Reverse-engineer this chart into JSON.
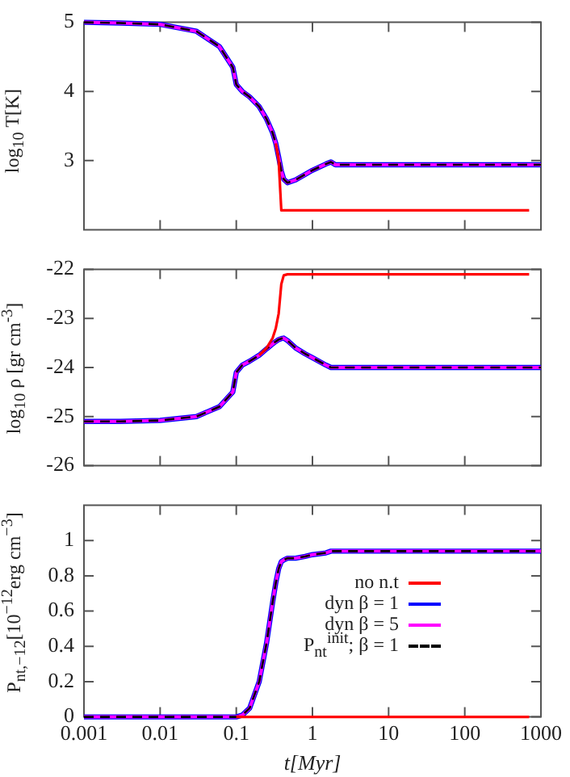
{
  "chart_data": [
    {
      "type": "line",
      "ylabel": "log$_{10}$ T[K]",
      "log": "x",
      "marker": "none",
      "grid": false,
      "tick_labels": "y",
      "x": [
        0.001,
        0.003,
        0.01,
        0.03,
        0.06,
        0.09,
        0.1,
        0.12,
        0.15,
        0.2,
        0.25,
        0.3,
        0.33,
        0.36,
        0.39,
        0.42,
        0.47,
        0.6,
        0.8,
        1,
        1.5,
        1.75,
        2,
        10,
        100,
        700,
        1000
      ],
      "xlim": [
        0.001,
        1000
      ],
      "xticks": [
        0.001,
        0.01,
        0.1,
        1,
        10,
        100,
        1000
      ],
      "ylim": [
        2,
        5
      ],
      "yticks": [
        3,
        4,
        5
      ],
      "series": [
        {
          "color": "#ff0000",
          "values": [
            null,
            null,
            null,
            null,
            null,
            null,
            null,
            null,
            null,
            null,
            null,
            null,
            3.25,
            3.0,
            2.28,
            2.28,
            2.28,
            2.28,
            2.28,
            2.28,
            2.28,
            2.28,
            2.28,
            2.28,
            2.28,
            2.28,
            null
          ]
        },
        {
          "color": "#0000ff",
          "values": [
            5,
            4.99,
            4.97,
            4.87,
            4.65,
            4.35,
            4.1,
            4.0,
            3.92,
            3.78,
            3.6,
            3.4,
            3.25,
            3.05,
            2.85,
            2.73,
            2.68,
            2.72,
            2.8,
            2.86,
            2.95,
            2.98,
            2.94,
            2.94,
            2.94,
            2.94,
            2.94
          ]
        },
        {
          "color": "#ff00ff",
          "values": [
            5,
            4.99,
            4.97,
            4.87,
            4.65,
            4.35,
            4.1,
            4.0,
            3.92,
            3.78,
            3.6,
            3.4,
            3.25,
            3.05,
            2.85,
            2.73,
            2.68,
            2.72,
            2.8,
            2.86,
            2.95,
            2.98,
            2.94,
            2.94,
            2.94,
            2.94,
            2.94
          ]
        },
        {
          "color": "#000000",
          "line_style": "dashed",
          "values": [
            5,
            4.99,
            4.97,
            4.87,
            4.65,
            4.35,
            4.1,
            4.0,
            3.92,
            3.78,
            3.6,
            3.4,
            3.25,
            3.05,
            2.85,
            2.73,
            2.68,
            2.72,
            2.8,
            2.86,
            2.95,
            2.98,
            2.94,
            2.94,
            2.94,
            2.94,
            2.94
          ]
        }
      ]
    },
    {
      "type": "line",
      "ylabel": "log$_{10}$ ρ [gr cm$^{-3}$]",
      "log": "x",
      "marker": "none",
      "grid": false,
      "tick_labels": "y",
      "x": [
        0.001,
        0.003,
        0.01,
        0.03,
        0.06,
        0.09,
        0.1,
        0.12,
        0.15,
        0.2,
        0.25,
        0.3,
        0.33,
        0.36,
        0.39,
        0.42,
        0.47,
        0.6,
        0.8,
        1,
        1.5,
        1.75,
        2,
        10,
        100,
        700,
        1000
      ],
      "xlim": [
        0.001,
        1000
      ],
      "xticks": [
        0.001,
        0.01,
        0.1,
        1,
        10,
        100,
        1000
      ],
      "ylim": [
        -26,
        -22
      ],
      "yticks": [
        -26,
        -25,
        -24,
        -23,
        -22
      ],
      "series": [
        {
          "color": "#ff0000",
          "values": [
            null,
            null,
            null,
            null,
            null,
            null,
            null,
            null,
            null,
            -23.75,
            -23.6,
            -23.4,
            -23.2,
            -22.9,
            -22.3,
            -22.12,
            -22.1,
            -22.1,
            -22.1,
            -22.1,
            -22.1,
            -22.1,
            -22.1,
            -22.1,
            -22.1,
            -22.1,
            null
          ]
        },
        {
          "color": "#0000ff",
          "values": [
            -25.1,
            -25.1,
            -25.08,
            -25.0,
            -24.8,
            -24.5,
            -24.1,
            -23.95,
            -23.87,
            -23.75,
            -23.62,
            -23.52,
            -23.47,
            -23.43,
            -23.41,
            -23.4,
            -23.45,
            -23.6,
            -23.72,
            -23.8,
            -23.95,
            -24.0,
            -24.0,
            -24.0,
            -24.0,
            -24.0,
            -24.0
          ]
        },
        {
          "color": "#ff00ff",
          "values": [
            -25.1,
            -25.1,
            -25.08,
            -25.0,
            -24.8,
            -24.5,
            -24.1,
            -23.95,
            -23.87,
            -23.75,
            -23.62,
            -23.52,
            -23.47,
            -23.43,
            -23.41,
            -23.4,
            -23.45,
            -23.6,
            -23.72,
            -23.8,
            -23.95,
            -24.0,
            -24.0,
            -24.0,
            -24.0,
            -24.0,
            -24.0
          ]
        },
        {
          "color": "#000000",
          "line_style": "dashed",
          "values": [
            -25.1,
            -25.1,
            -25.08,
            -25.0,
            -24.8,
            -24.5,
            -24.1,
            -23.95,
            -23.87,
            -23.75,
            -23.62,
            -23.52,
            -23.47,
            -23.43,
            -23.41,
            -23.4,
            -23.45,
            -23.6,
            -23.72,
            -23.8,
            -23.95,
            -24.0,
            -24.0,
            -24.0,
            -24.0,
            -24.0,
            -24.0
          ]
        }
      ]
    },
    {
      "type": "line",
      "ylabel": "P$_{nt,−12}$[10$^{−12}$erg cm$^{−3}$]",
      "xlabel": "t[Myr]",
      "log": "x",
      "marker": "none",
      "grid": false,
      "legend": "right",
      "x": [
        0.001,
        0.003,
        0.01,
        0.03,
        0.06,
        0.09,
        0.1,
        0.12,
        0.15,
        0.2,
        0.25,
        0.3,
        0.33,
        0.36,
        0.39,
        0.42,
        0.47,
        0.6,
        0.8,
        1,
        1.5,
        1.75,
        2,
        10,
        100,
        700,
        1000
      ],
      "xlim": [
        0.001,
        1000
      ],
      "xticks": [
        0.001,
        0.01,
        0.1,
        1,
        10,
        100,
        1000
      ],
      "ylim": [
        0,
        1.2
      ],
      "yticks": [
        0,
        0.2,
        0.4,
        0.6,
        0.8,
        1
      ],
      "series": [
        {
          "name": "no n.t",
          "color": "#ff0000",
          "values": [
            null,
            null,
            null,
            null,
            null,
            null,
            0,
            0,
            0,
            0,
            0,
            0,
            0,
            0,
            0,
            0,
            0,
            0,
            0,
            0,
            0,
            0,
            0,
            0,
            0,
            0,
            null
          ]
        },
        {
          "name": "dyn β = 1",
          "color": "#0000ff",
          "values": [
            0,
            0,
            0,
            0,
            0,
            0,
            0,
            0.01,
            0.05,
            0.2,
            0.42,
            0.65,
            0.76,
            0.84,
            0.88,
            0.89,
            0.9,
            0.9,
            0.91,
            0.92,
            0.93,
            0.94,
            0.94,
            0.94,
            0.94,
            0.94,
            0.94
          ]
        },
        {
          "name": "dyn β = 5",
          "color": "#ff00ff",
          "values": [
            0,
            0,
            0,
            0,
            0,
            0,
            0,
            0.01,
            0.05,
            0.2,
            0.42,
            0.65,
            0.76,
            0.84,
            0.88,
            0.89,
            0.9,
            0.9,
            0.91,
            0.92,
            0.93,
            0.94,
            0.94,
            0.94,
            0.94,
            0.94,
            0.94
          ]
        },
        {
          "name": "P$_{nt}$$^{init}$; β = 1",
          "color": "#000000",
          "line_style": "dashed",
          "values": [
            0,
            0,
            0,
            0,
            0,
            0,
            0,
            0.01,
            0.05,
            0.2,
            0.42,
            0.65,
            0.76,
            0.84,
            0.88,
            0.89,
            0.9,
            0.9,
            0.91,
            0.92,
            0.93,
            0.94,
            0.94,
            0.94,
            0.94,
            0.94,
            0.94
          ]
        }
      ]
    }
  ]
}
